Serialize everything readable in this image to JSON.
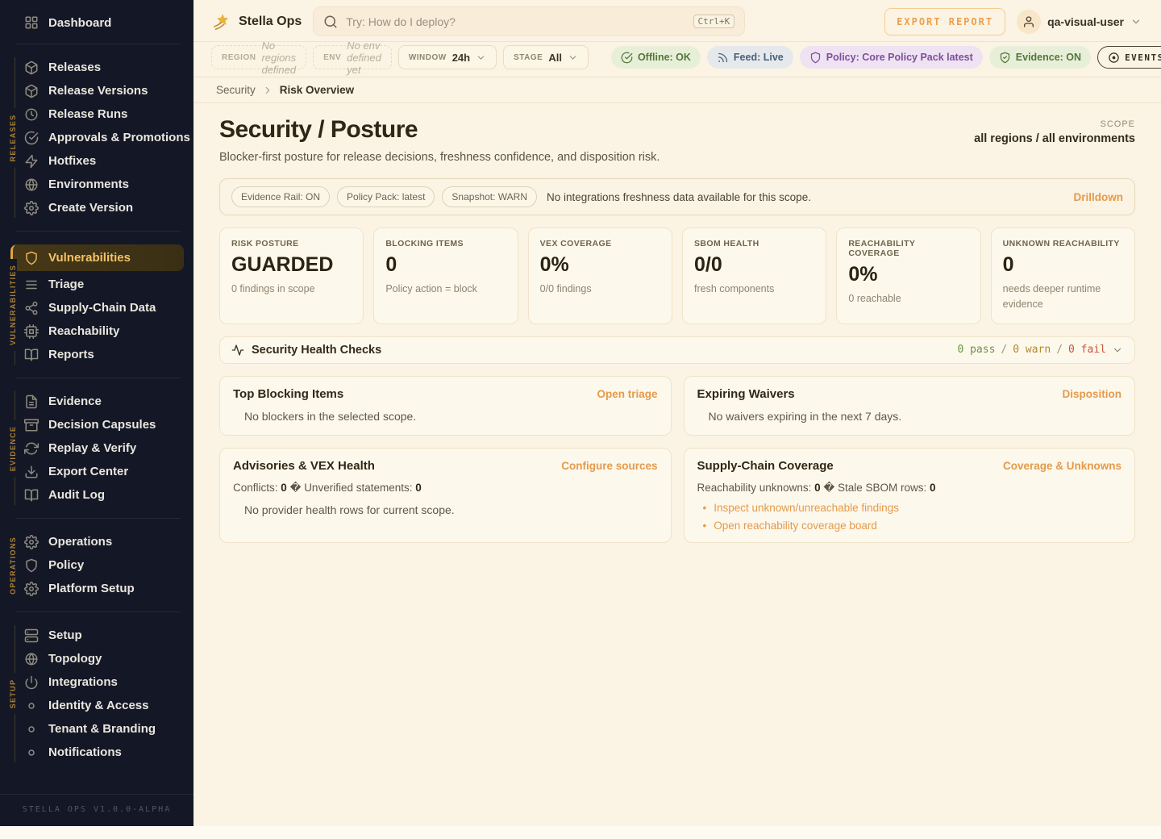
{
  "brand": {
    "logo_icon": "comet",
    "name": "Stella Ops"
  },
  "search": {
    "placeholder": "Try: How do I deploy?",
    "shortcut": "Ctrl+K"
  },
  "header": {
    "export_button": "EXPORT REPORT",
    "user": "qa-visual-user"
  },
  "filters": {
    "region_label": "REGION",
    "region_value": "No regions defined",
    "env_label": "ENV",
    "env_value": "No env defined yet",
    "window_label": "WINDOW",
    "window_value": "24h",
    "stage_label": "STAGE",
    "stage_value": "All",
    "status_chips": [
      {
        "icon": "check-circle",
        "label": "Offline: OK",
        "style": "green"
      },
      {
        "icon": "rss",
        "label": "Feed: Live",
        "style": "blue"
      },
      {
        "icon": "shield",
        "label": "Policy: Core Policy Pack latest",
        "style": "purple"
      },
      {
        "icon": "shield-check",
        "label": "Evidence: ON",
        "style": "green"
      },
      {
        "icon": "circle-dot",
        "label": "EVENTS: DEGRADED",
        "style": "outline"
      }
    ]
  },
  "breadcrumb": {
    "parent": "Security",
    "current": "Risk Overview"
  },
  "page": {
    "title": "Security / Posture",
    "subtitle": "Blocker-first posture for release decisions, freshness confidence, and disposition risk.",
    "scope_label": "SCOPE",
    "scope_value": "all regions / all environments"
  },
  "banner": {
    "chips": [
      "Evidence Rail: ON",
      "Policy Pack: latest",
      "Snapshot: WARN"
    ],
    "message": "No integrations freshness data available for this scope.",
    "link": "Drilldown"
  },
  "metrics": [
    {
      "label": "RISK POSTURE",
      "value": "GUARDED",
      "sub": "0 findings in scope"
    },
    {
      "label": "BLOCKING ITEMS",
      "value": "0",
      "sub": "Policy action = block"
    },
    {
      "label": "VEX COVERAGE",
      "value": "0%",
      "sub": "0/0 findings"
    },
    {
      "label": "SBOM HEALTH",
      "value": "0/0",
      "sub": "fresh components"
    },
    {
      "label": "REACHABILITY COVERAGE",
      "value": "0%",
      "sub": "0 reachable"
    },
    {
      "label": "UNKNOWN REACHABILITY",
      "value": "0",
      "sub": "needs deeper runtime evidence"
    }
  ],
  "health": {
    "title": "Security Health Checks",
    "pass": "0 pass",
    "warn": "0 warn",
    "fail": "0 fail",
    "separator": "/"
  },
  "panels": {
    "top_blocking": {
      "title": "Top Blocking Items",
      "link": "Open triage",
      "empty": "No blockers in the selected scope."
    },
    "expiring_waivers": {
      "title": "Expiring Waivers",
      "link": "Disposition",
      "empty": "No waivers expiring in the next 7 days."
    },
    "advisories": {
      "title": "Advisories & VEX Health",
      "link": "Configure sources",
      "stat_label_1": "Conflicts:",
      "stat_value_1": "0",
      "separator": "�",
      "stat_label_2": "Unverified statements:",
      "stat_value_2": "0",
      "empty": "No provider health rows for current scope."
    },
    "supply_chain": {
      "title": "Supply-Chain Coverage",
      "link": "Coverage & Unknowns",
      "stat_label_1": "Reachability unknowns:",
      "stat_value_1": "0",
      "separator": "�",
      "stat_label_2": "Stale SBOM rows:",
      "stat_value_2": "0",
      "links": [
        "Inspect unknown/unreachable findings",
        "Open reachability coverage board"
      ]
    }
  },
  "sidebar": {
    "top": {
      "icon": "grid",
      "label": "Dashboard"
    },
    "groups": [
      {
        "label": "RELEASES",
        "items": [
          {
            "icon": "package",
            "label": "Releases"
          },
          {
            "icon": "package",
            "label": "Release Versions"
          },
          {
            "icon": "clock",
            "label": "Release Runs"
          },
          {
            "icon": "check-circle",
            "label": "Approvals & Promotions"
          },
          {
            "icon": "zap",
            "label": "Hotfixes"
          },
          {
            "icon": "globe",
            "label": "Environments"
          },
          {
            "icon": "gear",
            "label": "Create Version"
          }
        ]
      },
      {
        "label": "VULNERABILITIES",
        "items": [
          {
            "icon": "shield",
            "label": "Vulnerabilities",
            "active": true
          },
          {
            "icon": "list",
            "label": "Triage"
          },
          {
            "icon": "share",
            "label": "Supply-Chain Data"
          },
          {
            "icon": "cpu",
            "label": "Reachability"
          },
          {
            "icon": "book",
            "label": "Reports"
          }
        ]
      },
      {
        "label": "EVIDENCE",
        "items": [
          {
            "icon": "file-text",
            "label": "Evidence"
          },
          {
            "icon": "archive",
            "label": "Decision Capsules"
          },
          {
            "icon": "refresh",
            "label": "Replay & Verify"
          },
          {
            "icon": "download",
            "label": "Export Center"
          },
          {
            "icon": "book",
            "label": "Audit Log"
          }
        ]
      },
      {
        "label": "OPERATIONS",
        "items": [
          {
            "icon": "gear",
            "label": "Operations"
          },
          {
            "icon": "shield",
            "label": "Policy"
          },
          {
            "icon": "gear",
            "label": "Platform Setup"
          }
        ]
      },
      {
        "label": "SETUP",
        "items": [
          {
            "icon": "server",
            "label": "Setup"
          },
          {
            "icon": "globe",
            "label": "Topology"
          },
          {
            "icon": "power",
            "label": "Integrations"
          },
          {
            "icon": "dot",
            "label": "Identity & Access"
          },
          {
            "icon": "dot",
            "label": "Tenant & Branding"
          },
          {
            "icon": "dot",
            "label": "Notifications"
          }
        ]
      }
    ],
    "footer": "STELLA OPS V1.0.0-ALPHA"
  },
  "colors": {
    "accent_orange": "#e49a4b",
    "accent_gold": "#e2a53e",
    "sidebar_bg": "#141826",
    "green": "#55763b",
    "amber": "#b3872c",
    "red": "#c4563a",
    "purple": "#7d4f9e",
    "blue": "#47607a"
  }
}
